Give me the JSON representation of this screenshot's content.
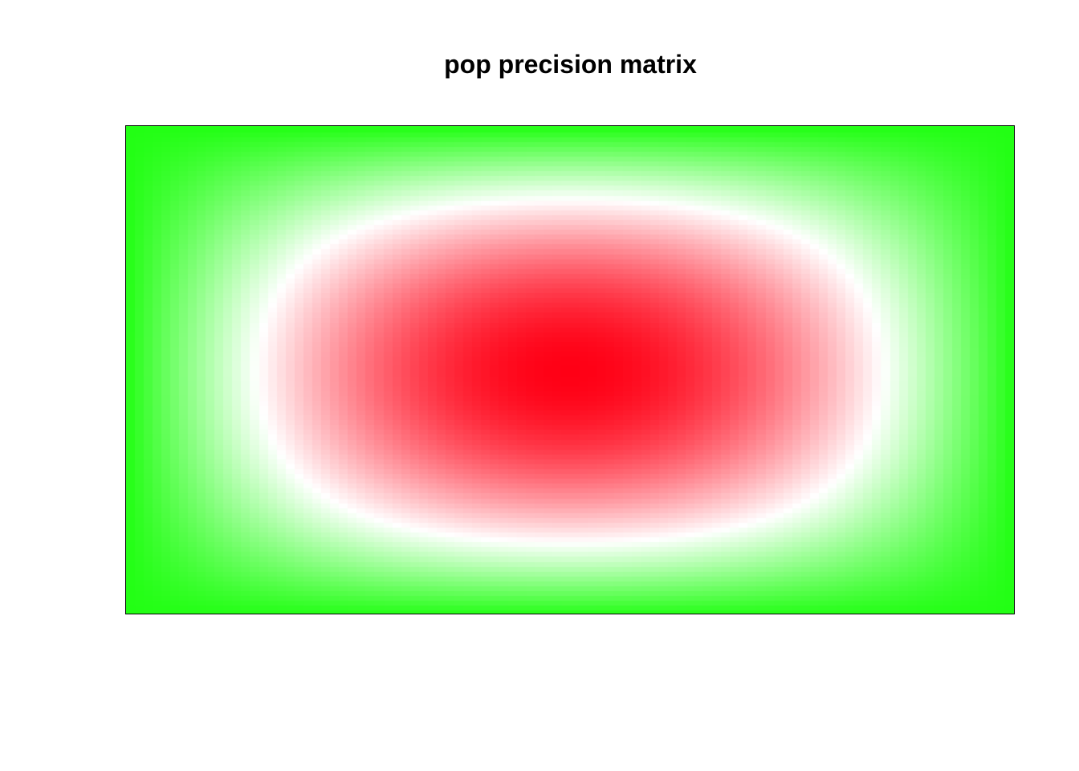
{
  "chart_data": {
    "type": "heatmap",
    "title": "pop precision matrix",
    "xlabel": "",
    "ylabel": "",
    "matrix_size": 100,
    "colors": {
      "low": "#22ff14",
      "mid": "#ffffff",
      "high": "#ff0015"
    },
    "value_model": "Q[i][j] = sin(pi*(min(i,j)+0.5)/n) * sin(pi*(n-max(i,j)-0.5)/n), i,j = 0..n-1",
    "value_range": [
      0,
      1
    ],
    "color_midpoint": 0.45,
    "axes_shown": false,
    "grid": false,
    "legend": "none"
  }
}
